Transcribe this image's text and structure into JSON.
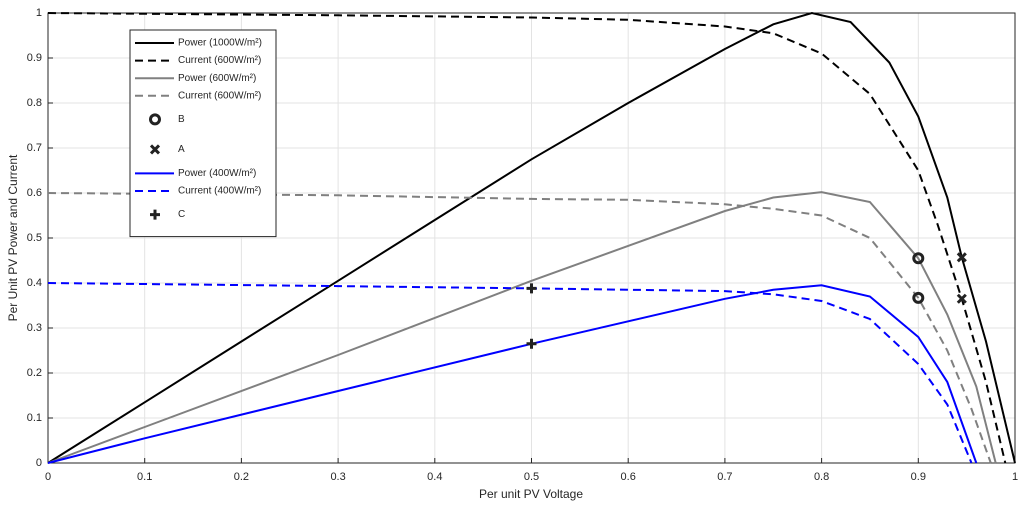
{
  "chart_data": {
    "type": "line",
    "xlabel": "Per unit PV Voltage",
    "ylabel": "Per Unit PV Power and Current",
    "xlim": [
      0,
      1
    ],
    "ylim": [
      0,
      1
    ],
    "xticks": [
      0,
      0.1,
      0.2,
      0.3,
      0.4,
      0.5,
      0.6,
      0.7,
      0.8,
      0.9,
      1
    ],
    "yticks": [
      0,
      0.1,
      0.2,
      0.3,
      0.4,
      0.5,
      0.6,
      0.7,
      0.8,
      0.9,
      1
    ],
    "grid": true,
    "legend": "upper left",
    "series": [
      {
        "name": "Power (1000W/m²)",
        "color": "#000000",
        "style": "solid",
        "x": [
          0,
          0.1,
          0.2,
          0.3,
          0.4,
          0.5,
          0.6,
          0.7,
          0.75,
          0.79,
          0.83,
          0.87,
          0.9,
          0.93,
          0.945,
          0.97,
          1.0
        ],
        "values": [
          0,
          0.135,
          0.27,
          0.405,
          0.54,
          0.675,
          0.8,
          0.92,
          0.975,
          1.0,
          0.98,
          0.89,
          0.77,
          0.59,
          0.457,
          0.27,
          0
        ]
      },
      {
        "name": "Current (600W/m²)",
        "color": "#000000",
        "style": "dashed",
        "x": [
          0,
          0.3,
          0.5,
          0.6,
          0.7,
          0.75,
          0.8,
          0.85,
          0.9,
          0.92,
          0.945,
          0.97,
          0.99
        ],
        "values": [
          1,
          0.995,
          0.99,
          0.985,
          0.97,
          0.955,
          0.91,
          0.82,
          0.65,
          0.53,
          0.365,
          0.18,
          0
        ]
      },
      {
        "name": "Power (600W/m²)",
        "color": "#808080",
        "style": "solid",
        "x": [
          0,
          0.1,
          0.3,
          0.5,
          0.7,
          0.75,
          0.8,
          0.85,
          0.9,
          0.93,
          0.96,
          0.98
        ],
        "values": [
          0,
          0.08,
          0.24,
          0.405,
          0.56,
          0.59,
          0.602,
          0.58,
          0.455,
          0.33,
          0.17,
          0
        ]
      },
      {
        "name": "Current (600W/m²)",
        "color": "#808080",
        "style": "dashed",
        "x": [
          0,
          0.3,
          0.5,
          0.6,
          0.7,
          0.75,
          0.8,
          0.85,
          0.9,
          0.93,
          0.955,
          0.975
        ],
        "values": [
          0.6,
          0.595,
          0.587,
          0.585,
          0.575,
          0.565,
          0.55,
          0.5,
          0.367,
          0.25,
          0.12,
          0
        ]
      },
      {
        "name": "B",
        "color": "#222222",
        "marker": "circle",
        "x": [
          0.9,
          0.9
        ],
        "values": [
          0.455,
          0.367
        ]
      },
      {
        "name": "A",
        "color": "#222222",
        "marker": "x",
        "x": [
          0.945,
          0.945
        ],
        "values": [
          0.457,
          0.365
        ]
      },
      {
        "name": "Power (400W/m²)",
        "color": "#0000ff",
        "style": "solid",
        "x": [
          0,
          0.1,
          0.3,
          0.5,
          0.7,
          0.75,
          0.8,
          0.85,
          0.9,
          0.93,
          0.96
        ],
        "values": [
          0,
          0.055,
          0.16,
          0.265,
          0.365,
          0.385,
          0.395,
          0.37,
          0.28,
          0.18,
          0
        ]
      },
      {
        "name": "Current (400W/m²)",
        "color": "#0000ff",
        "style": "dashed",
        "x": [
          0,
          0.3,
          0.5,
          0.7,
          0.75,
          0.8,
          0.85,
          0.9,
          0.93,
          0.955
        ],
        "values": [
          0.4,
          0.393,
          0.388,
          0.382,
          0.375,
          0.36,
          0.32,
          0.22,
          0.13,
          0
        ]
      },
      {
        "name": "C",
        "color": "#222222",
        "marker": "plus",
        "x": [
          0.5,
          0.5
        ],
        "values": [
          0.388,
          0.265
        ]
      }
    ]
  }
}
